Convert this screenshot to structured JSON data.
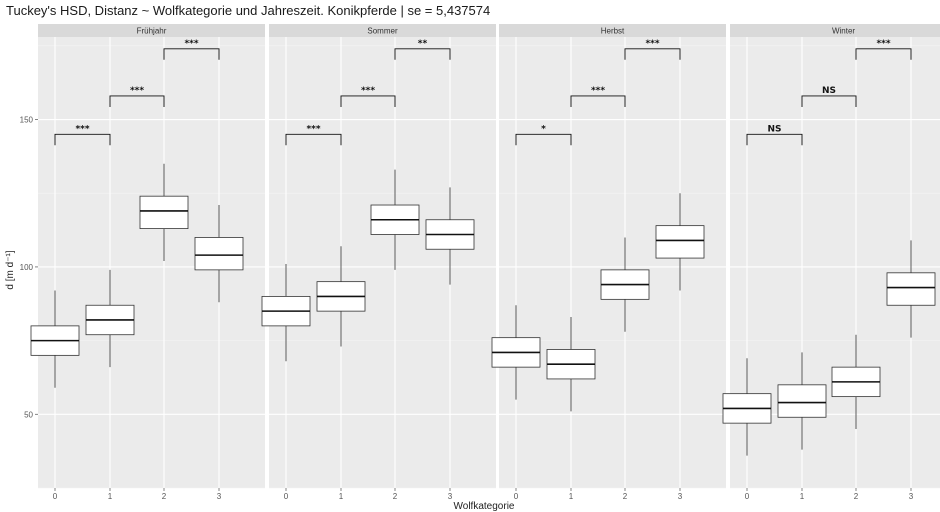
{
  "chart_data": {
    "type": "box",
    "title": "Tuckey's HSD, Distanz ~ Wolfkategorie und Jahreszeit. Konikpferde | se = 5,437574",
    "xlabel": "Wolfkategorie",
    "ylabel": "d [m d⁻¹]",
    "ylim": [
      25,
      178
    ],
    "yticks": [
      50,
      100,
      150
    ],
    "categories": [
      "0",
      "1",
      "2",
      "3"
    ],
    "panels": [
      {
        "name": "Frühjahr",
        "boxes": [
          {
            "category": "0",
            "whisker_low": 59,
            "q1": 70,
            "median": 75,
            "q3": 80,
            "whisker_high": 92
          },
          {
            "category": "1",
            "whisker_low": 66,
            "q1": 77,
            "median": 82,
            "q3": 87,
            "whisker_high": 99
          },
          {
            "category": "2",
            "whisker_low": 102,
            "q1": 113,
            "median": 119,
            "q3": 124,
            "whisker_high": 135
          },
          {
            "category": "3",
            "whisker_low": 88,
            "q1": 99,
            "median": 104,
            "q3": 110,
            "whisker_high": 121
          }
        ],
        "comparisons": [
          {
            "from": "0",
            "to": "1",
            "label": "***",
            "y": 145
          },
          {
            "from": "1",
            "to": "2",
            "label": "***",
            "y": 158
          },
          {
            "from": "2",
            "to": "3",
            "label": "***",
            "y": 174
          }
        ]
      },
      {
        "name": "Sommer",
        "boxes": [
          {
            "category": "0",
            "whisker_low": 68,
            "q1": 80,
            "median": 85,
            "q3": 90,
            "whisker_high": 101
          },
          {
            "category": "1",
            "whisker_low": 73,
            "q1": 85,
            "median": 90,
            "q3": 95,
            "whisker_high": 107
          },
          {
            "category": "2",
            "whisker_low": 99,
            "q1": 111,
            "median": 116,
            "q3": 121,
            "whisker_high": 133
          },
          {
            "category": "3",
            "whisker_low": 94,
            "q1": 106,
            "median": 111,
            "q3": 116,
            "whisker_high": 127
          }
        ],
        "comparisons": [
          {
            "from": "0",
            "to": "1",
            "label": "***",
            "y": 145
          },
          {
            "from": "1",
            "to": "2",
            "label": "***",
            "y": 158
          },
          {
            "from": "2",
            "to": "3",
            "label": "**",
            "y": 174
          }
        ]
      },
      {
        "name": "Herbst",
        "boxes": [
          {
            "category": "0",
            "whisker_low": 55,
            "q1": 66,
            "median": 71,
            "q3": 76,
            "whisker_high": 87
          },
          {
            "category": "1",
            "whisker_low": 51,
            "q1": 62,
            "median": 67,
            "q3": 72,
            "whisker_high": 83
          },
          {
            "category": "2",
            "whisker_low": 78,
            "q1": 89,
            "median": 94,
            "q3": 99,
            "whisker_high": 110
          },
          {
            "category": "3",
            "whisker_low": 92,
            "q1": 103,
            "median": 109,
            "q3": 114,
            "whisker_high": 125
          }
        ],
        "comparisons": [
          {
            "from": "0",
            "to": "1",
            "label": "*",
            "y": 145
          },
          {
            "from": "1",
            "to": "2",
            "label": "***",
            "y": 158
          },
          {
            "from": "2",
            "to": "3",
            "label": "***",
            "y": 174
          }
        ]
      },
      {
        "name": "Winter",
        "boxes": [
          {
            "category": "0",
            "whisker_low": 36,
            "q1": 47,
            "median": 52,
            "q3": 57,
            "whisker_high": 69
          },
          {
            "category": "1",
            "whisker_low": 38,
            "q1": 49,
            "median": 54,
            "q3": 60,
            "whisker_high": 71
          },
          {
            "category": "2",
            "whisker_low": 45,
            "q1": 56,
            "median": 61,
            "q3": 66,
            "whisker_high": 77
          },
          {
            "category": "3",
            "whisker_low": 76,
            "q1": 87,
            "median": 93,
            "q3": 98,
            "whisker_high": 109
          }
        ],
        "comparisons": [
          {
            "from": "0",
            "to": "1",
            "label": "NS",
            "y": 145
          },
          {
            "from": "1",
            "to": "2",
            "label": "NS",
            "y": 158
          },
          {
            "from": "2",
            "to": "3",
            "label": "***",
            "y": 174
          }
        ]
      }
    ],
    "grid": true,
    "panel_background": "#ebebeb",
    "strip_background": "#d9d9d9",
    "box_fill": "#ffffff",
    "box_stroke": "#333333"
  }
}
